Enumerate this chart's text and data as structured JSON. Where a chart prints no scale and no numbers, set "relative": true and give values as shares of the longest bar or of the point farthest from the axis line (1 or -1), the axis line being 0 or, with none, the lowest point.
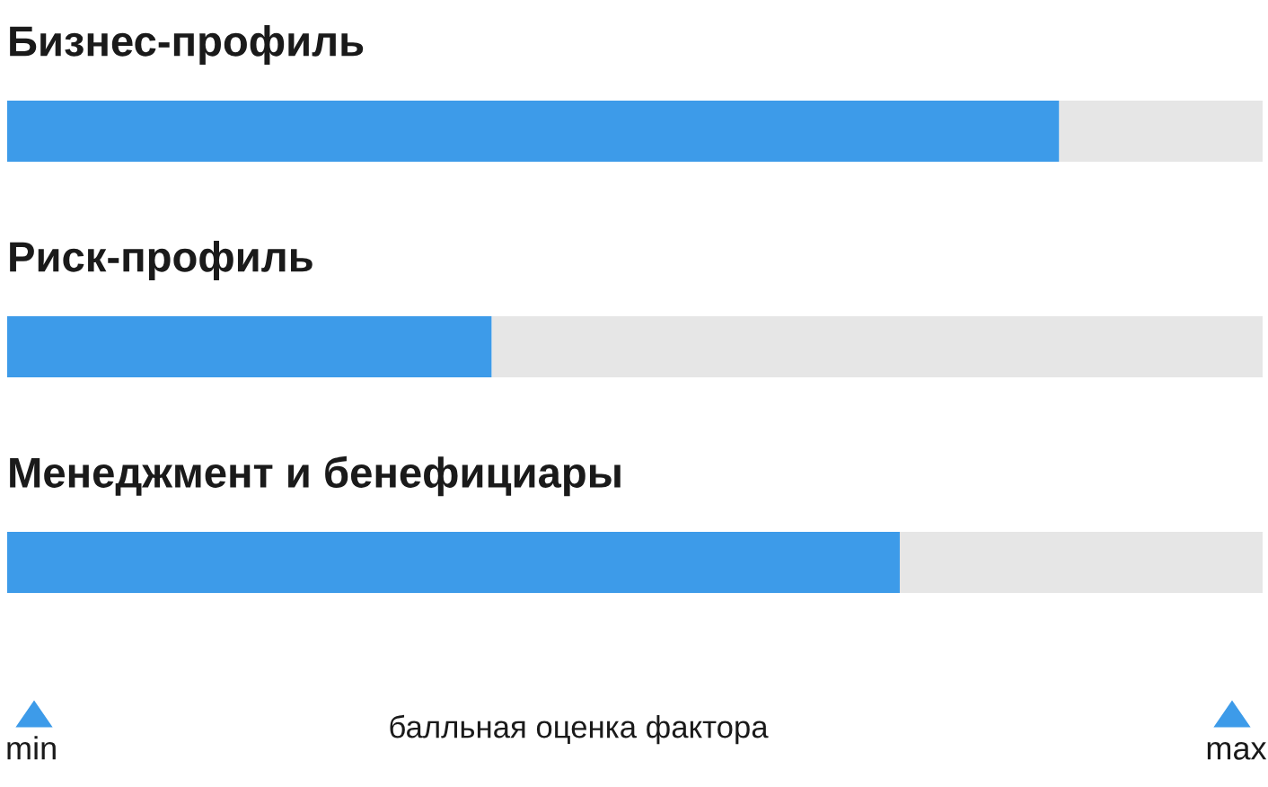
{
  "chart_data": {
    "type": "bar",
    "orientation": "horizontal",
    "stacked": true,
    "relative": true,
    "categories": [
      "Бизнес-профиль",
      "Риск-профиль",
      "Менеджмент и бенефициары"
    ],
    "series": [
      {
        "color": "#3d9be9",
        "values": [
          0.838,
          0.386,
          0.711
        ]
      },
      {
        "color": "#e6e6e6",
        "values": [
          0.162,
          0.614,
          0.289
        ]
      }
    ],
    "annotations": [
      "min",
      "балльная оценка фактора",
      "max"
    ]
  }
}
